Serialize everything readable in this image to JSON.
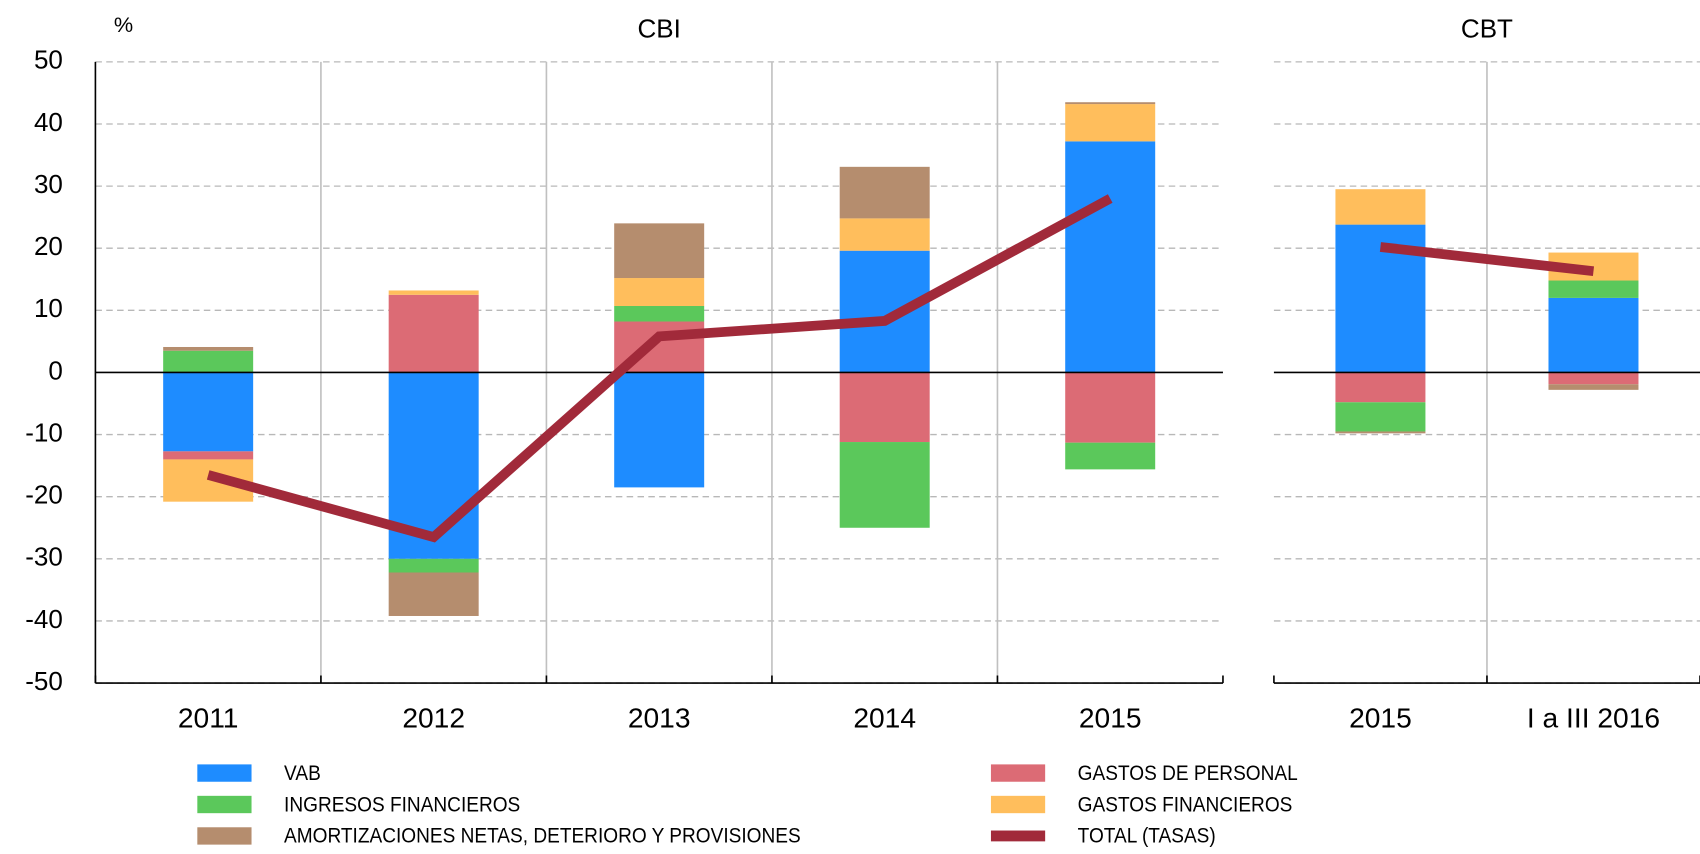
{
  "chart_data": [
    {
      "type": "bar",
      "stacked": true,
      "title": "CBI",
      "y_label": "%",
      "categories": [
        "2011",
        "2012",
        "2013",
        "2014",
        "2015"
      ],
      "ylim": [
        -50,
        50
      ],
      "yticks": [
        -50,
        -40,
        -30,
        -20,
        -10,
        0,
        10,
        20,
        30,
        40,
        50
      ],
      "grid": true,
      "series": [
        {
          "name": "VAB",
          "color": "#1e8cff",
          "values": [
            -12.7,
            -30,
            -18.5,
            19.6,
            37.2
          ]
        },
        {
          "name": "GASTOS DE PERSONAL",
          "color": "#dc6b75",
          "values": [
            -1.3,
            12.5,
            8.2,
            -11.2,
            -11.3
          ]
        },
        {
          "name": "INGRESOS FINANCIEROS",
          "color": "#5bc85b",
          "values": [
            3.5,
            -2.2,
            2.5,
            -13.8,
            -4.3
          ]
        },
        {
          "name": "GASTOS FINANCIEROS",
          "color": "#ffbe5c",
          "values": [
            -6.8,
            0.7,
            4.5,
            5.2,
            6
          ]
        },
        {
          "name": "AMORTIZACIONES NETAS, DETERIORO Y PROVISIONES",
          "color": "#b58d6e",
          "values": [
            0.6,
            -7,
            8.8,
            8.3,
            0.3
          ]
        },
        {
          "name": "TOTAL (TASAS)",
          "type": "line",
          "color": "#a12a3a",
          "values": [
            -16.5,
            -26.5,
            5.8,
            8.3,
            28
          ]
        }
      ]
    },
    {
      "type": "bar",
      "stacked": true,
      "title": "CBT",
      "categories": [
        "2015",
        "I a III 2016"
      ],
      "ylim": [
        -50,
        50
      ],
      "yticks": [
        -50,
        -40,
        -30,
        -20,
        -10,
        0,
        10,
        20,
        30,
        40,
        50
      ],
      "grid": true,
      "series": [
        {
          "color": "#1e8cff",
          "values": [
            23.8,
            12
          ]
        },
        {
          "color": "#dc6b75",
          "values": [
            -4.8,
            -1.9
          ]
        },
        {
          "color": "#5bc85b",
          "values": [
            -4.7,
            2.8
          ]
        },
        {
          "color": "#ffbe5c",
          "values": [
            5.7,
            4.5
          ]
        },
        {
          "color": "#b58d6e",
          "values": [
            -0.3,
            -0.9
          ]
        },
        {
          "type": "line",
          "color": "#a12a3a",
          "values": [
            20.2,
            16.3
          ]
        }
      ]
    }
  ]
}
